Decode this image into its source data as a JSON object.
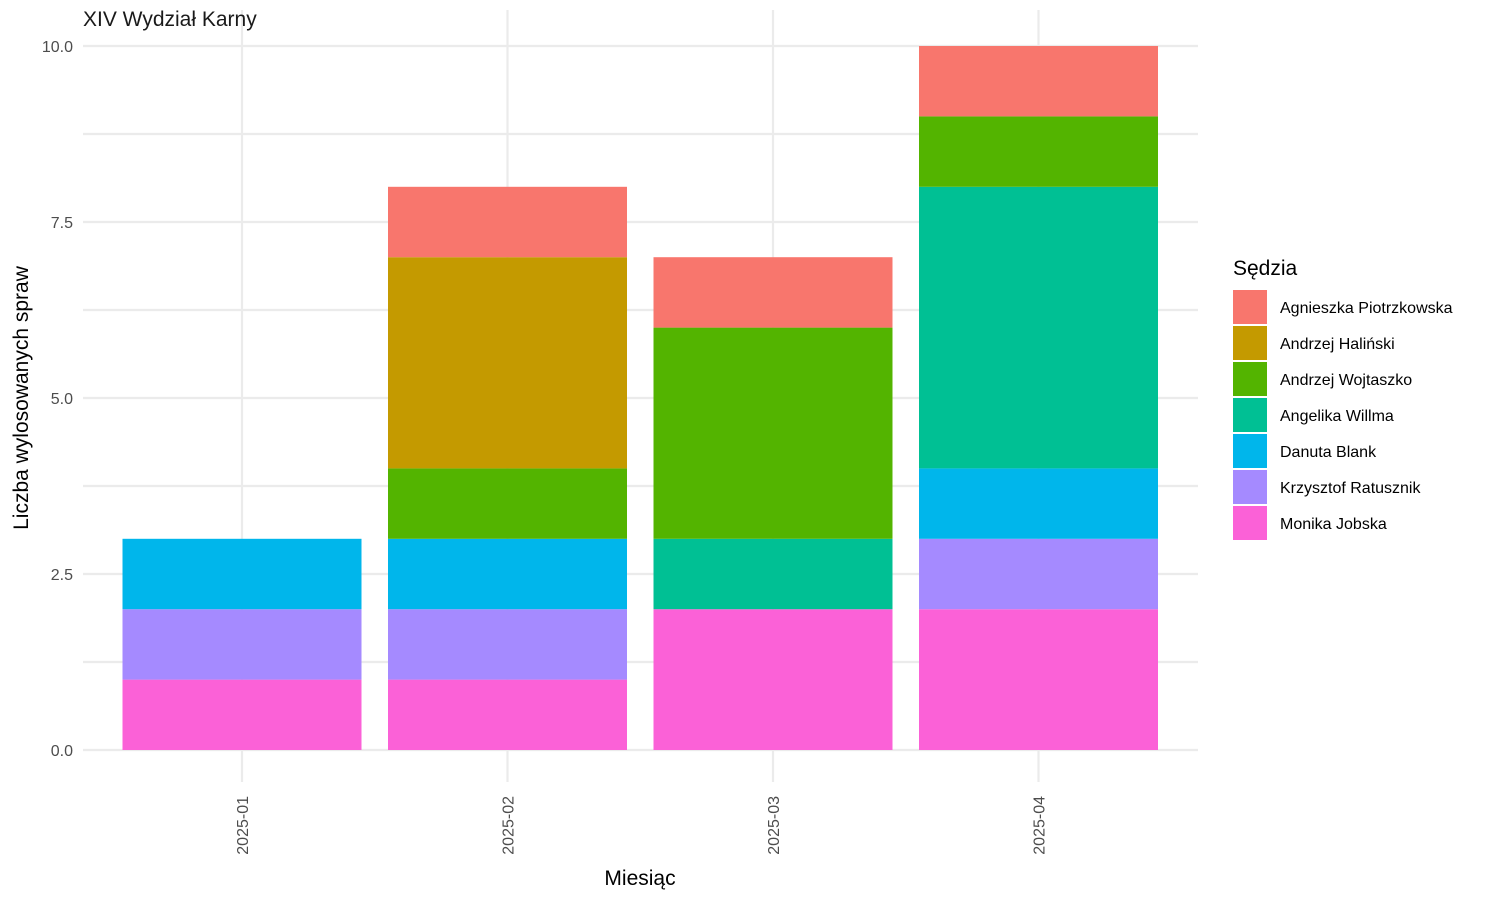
{
  "chart_data": {
    "type": "bar",
    "stacked": true,
    "title": "XIV Wydział Karny",
    "xlabel": "Miesiąc",
    "ylabel": "Liczba wylosowanych spraw",
    "ylim": [
      0,
      10
    ],
    "yticks": [
      "0.0",
      "2.5",
      "5.0",
      "7.5",
      "10.0"
    ],
    "categories": [
      "2025-01",
      "2025-02",
      "2025-03",
      "2025-04"
    ],
    "legend": {
      "title": "Sędzia",
      "position": "right"
    },
    "grid": true,
    "series": [
      {
        "name": "Agnieszka Piotrzkowska",
        "color": "#F8766D",
        "values": [
          0,
          1,
          1,
          1
        ]
      },
      {
        "name": "Andrzej Haliński",
        "color": "#C49A00",
        "values": [
          0,
          3,
          0,
          0
        ]
      },
      {
        "name": "Andrzej Wojtaszko",
        "color": "#53B400",
        "values": [
          0,
          1,
          3,
          1
        ]
      },
      {
        "name": "Angelika Willma",
        "color": "#00C094",
        "values": [
          0,
          0,
          1,
          4
        ]
      },
      {
        "name": "Danuta Blank",
        "color": "#00B6EB",
        "values": [
          1,
          1,
          0,
          1
        ]
      },
      {
        "name": "Krzysztof Ratusznik",
        "color": "#A58AFF",
        "values": [
          1,
          1,
          0,
          1
        ]
      },
      {
        "name": "Monika Jobska",
        "color": "#FB61D7",
        "values": [
          1,
          1,
          2,
          2
        ]
      }
    ]
  }
}
